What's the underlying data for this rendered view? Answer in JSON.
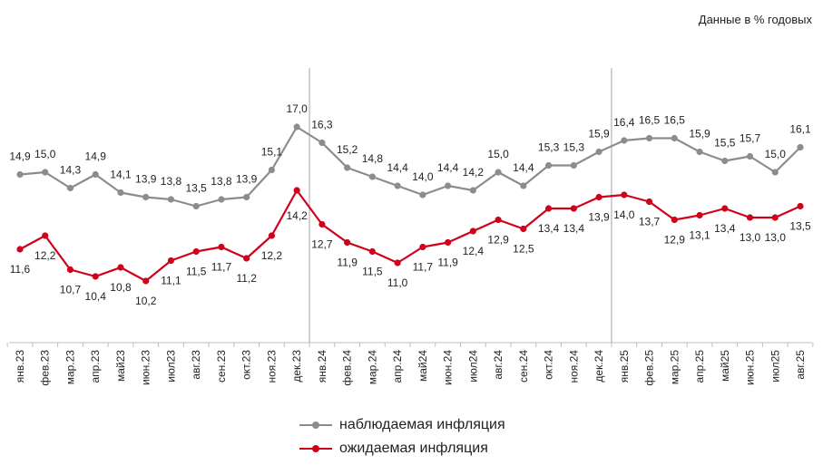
{
  "note": "Данные в % годовых",
  "legend": [
    {
      "label": "наблюдаемая  инфляция",
      "color": "#8c8c8c"
    },
    {
      "label": "ожидаемая  инфляция",
      "color": "#d0021b"
    }
  ],
  "chart_data": {
    "type": "line",
    "categories": [
      "янв.23",
      "фев.23",
      "мар.23",
      "апр.23",
      "май23",
      "июн.23",
      "июл23",
      "авг.23",
      "сен.23",
      "окт.23",
      "ноя.23",
      "дек.23",
      "янв.24",
      "фев.24",
      "мар.24",
      "апр.24",
      "май24",
      "июн.24",
      "июл24",
      "авг.24",
      "сен.24",
      "окт.24",
      "ноя.24",
      "дек.24",
      "янв.25",
      "фев.25",
      "мар.25",
      "апр.25",
      "май25",
      "июн.25",
      "июл25",
      "авг.25"
    ],
    "series": [
      {
        "name": "наблюдаемая  инфляция",
        "color": "#8c8c8c",
        "values": [
          14.9,
          15.0,
          14.3,
          14.9,
          14.1,
          13.9,
          13.8,
          13.5,
          13.8,
          13.9,
          15.1,
          17.0,
          16.3,
          15.2,
          14.8,
          14.4,
          14.0,
          14.4,
          14.2,
          15.0,
          14.4,
          15.3,
          15.3,
          15.9,
          16.4,
          16.5,
          16.5,
          15.9,
          15.5,
          15.7,
          15.0,
          16.1
        ],
        "labels": [
          "14,9",
          "15,0",
          "14,3",
          "14,9",
          "14,1",
          "13,9",
          "13,8",
          "13,5",
          "13,8",
          "13,9",
          "15,1",
          "17,0",
          "16,3",
          "15,2",
          "14,8",
          "14,4",
          "14,0",
          "14,4",
          "14,2",
          "15,0",
          "14,4",
          "15,3",
          "15,3",
          "15,9",
          "16,4",
          "16,5",
          "16,5",
          "15,9",
          "15,5",
          "15,7",
          "15,0",
          "16,1"
        ]
      },
      {
        "name": "ожидаемая  инфляция",
        "color": "#d0021b",
        "values": [
          11.6,
          12.2,
          10.7,
          10.4,
          10.8,
          10.2,
          11.1,
          11.5,
          11.7,
          11.2,
          12.2,
          14.2,
          12.7,
          11.9,
          11.5,
          11.0,
          11.7,
          11.9,
          12.4,
          12.9,
          12.5,
          13.4,
          13.4,
          13.9,
          14.0,
          13.7,
          12.9,
          13.1,
          13.4,
          13.0,
          13.0,
          13.5
        ],
        "labels": [
          "11,6",
          "12,2",
          "10,7",
          "10,4",
          "10,8",
          "10,2",
          "11,1",
          "11,5",
          "11,7",
          "11,2",
          "12,2",
          "14,2",
          "12,7",
          "11,9",
          "11,5",
          "11,0",
          "11,7",
          "11,9",
          "12,4",
          "12,9",
          "12,5",
          "13,4",
          "13,4",
          "13,9",
          "14,0",
          "13,7",
          "12,9",
          "13,1",
          "13,4",
          "13,0",
          "13,0",
          "13,5"
        ]
      }
    ],
    "ylim": [
      7,
      18
    ],
    "year_dividers_after": [
      "дек.23",
      "дек.24"
    ],
    "grid": false,
    "legend_position": "bottom-center"
  }
}
